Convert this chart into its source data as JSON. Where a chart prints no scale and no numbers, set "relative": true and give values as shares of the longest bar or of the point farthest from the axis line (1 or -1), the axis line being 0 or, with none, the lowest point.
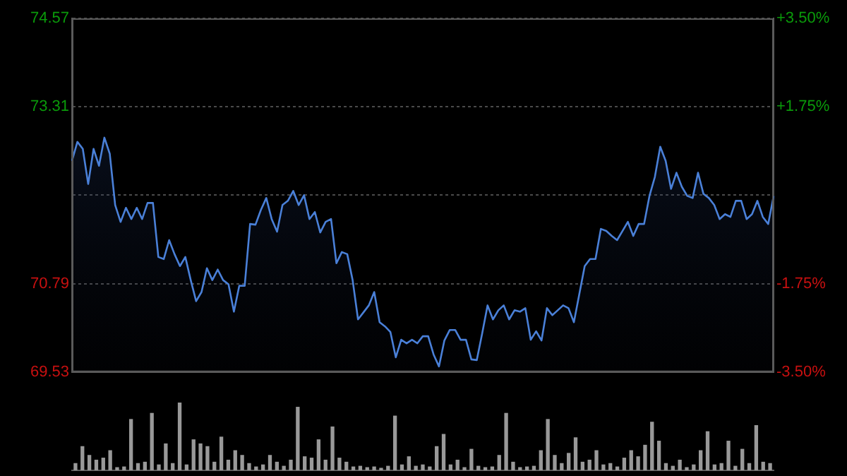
{
  "chart_data": [
    {
      "type": "area",
      "categories": [
        null,
        null,
        null,
        null,
        null,
        null,
        null,
        null,
        null,
        null,
        null,
        null,
        null,
        null,
        null,
        null,
        null,
        null,
        null,
        null,
        null,
        null,
        null,
        null,
        null,
        null,
        null,
        null,
        null,
        null,
        null,
        null,
        null,
        null,
        null,
        null,
        null,
        null,
        null,
        null,
        null,
        null,
        null,
        null,
        null,
        null,
        null,
        null,
        null,
        null,
        null,
        null,
        null,
        null,
        null,
        null,
        null,
        null,
        null,
        null,
        null,
        null,
        null,
        null,
        null,
        null,
        null,
        null,
        null,
        null,
        null,
        null,
        null,
        null,
        null,
        null,
        null,
        null,
        null,
        null,
        null,
        null,
        null,
        null,
        null,
        null,
        null,
        null,
        null,
        null,
        null,
        null,
        null,
        null,
        null,
        null,
        null,
        null,
        null,
        null,
        null,
        null,
        null,
        null,
        null,
        null,
        null,
        null,
        null,
        null,
        null,
        null,
        null,
        null,
        null,
        null,
        null,
        null,
        null,
        null,
        null,
        null,
        null,
        null,
        null,
        null,
        null,
        null,
        null,
        null,
        null
      ],
      "series": [
        {
          "color": "#4a80d8",
          "values": [
            72.54,
            72.81,
            72.71,
            72.21,
            72.71,
            72.47,
            72.87,
            72.64,
            71.91,
            71.67,
            71.87,
            71.71,
            71.87,
            71.71,
            71.94,
            71.94,
            71.17,
            71.14,
            71.41,
            71.21,
            71.04,
            71.17,
            70.84,
            70.54,
            70.67,
            71.01,
            70.84,
            70.99,
            70.84,
            70.78,
            70.39,
            70.76,
            70.76,
            71.64,
            71.63,
            71.84,
            72.01,
            71.71,
            71.53,
            71.91,
            71.97,
            72.11,
            71.91,
            72.05,
            71.71,
            71.81,
            71.52,
            71.67,
            71.71,
            71.08,
            71.24,
            71.21,
            70.84,
            70.28,
            70.38,
            70.48,
            70.67,
            70.24,
            70.18,
            70.1,
            69.74,
            69.99,
            69.94,
            69.99,
            69.94,
            70.04,
            70.04,
            69.78,
            69.61,
            69.98,
            70.13,
            70.13,
            69.99,
            69.99,
            69.71,
            69.7,
            70.08,
            70.48,
            70.28,
            70.41,
            70.48,
            70.28,
            70.41,
            70.39,
            70.44,
            69.99,
            70.11,
            69.98,
            70.44,
            70.34,
            70.41,
            70.48,
            70.44,
            70.24,
            70.64,
            71.04,
            71.14,
            71.14,
            71.57,
            71.54,
            71.47,
            71.41,
            71.54,
            71.67,
            71.47,
            71.64,
            71.64,
            72.04,
            72.31,
            72.74,
            72.54,
            72.14,
            72.37,
            72.17,
            72.04,
            72.01,
            72.37,
            72.07,
            72.01,
            71.91,
            71.71,
            71.78,
            71.74,
            71.97,
            71.97,
            71.71,
            71.78,
            71.97,
            71.74,
            71.64,
            72.04
          ]
        }
      ],
      "ylim": [
        69.53,
        74.57
      ],
      "yticks": [
        74.57,
        73.31,
        {
          "value": 72.05,
          "label": null
        },
        70.79,
        69.53
      ],
      "y2lim": [
        -3.5,
        3.5
      ],
      "y2ticks": [
        {
          "value": 3.5,
          "label": "+3.50%"
        },
        {
          "value": 1.75,
          "label": "+1.75%"
        },
        {
          "value": 0,
          "label": null
        },
        {
          "value": -1.75,
          "label": "-1.75%"
        },
        {
          "value": -3.5,
          "label": "-3.50%"
        }
      ],
      "grid": "y",
      "tick_labels": "y",
      "legend": false,
      "marker": "none",
      "line_style": "solid"
    },
    {
      "type": "bar",
      "relative": true,
      "categories": [
        null,
        null,
        null,
        null,
        null,
        null,
        null,
        null,
        null,
        null,
        null,
        null,
        null,
        null,
        null,
        null,
        null,
        null,
        null,
        null,
        null,
        null,
        null,
        null,
        null,
        null,
        null,
        null,
        null,
        null,
        null,
        null,
        null,
        null,
        null,
        null,
        null,
        null,
        null,
        null,
        null,
        null,
        null,
        null,
        null,
        null,
        null,
        null,
        null,
        null,
        null,
        null,
        null,
        null,
        null,
        null,
        null,
        null,
        null,
        null,
        null,
        null,
        null,
        null,
        null,
        null,
        null,
        null,
        null,
        null,
        null,
        null,
        null,
        null,
        null,
        null,
        null,
        null,
        null,
        null,
        null,
        null,
        null,
        null,
        null,
        null,
        null,
        null,
        null,
        null,
        null,
        null,
        null,
        null,
        null,
        null,
        null,
        null,
        null,
        null,
        null
      ],
      "series": [
        {
          "color": "#999999",
          "values": [
            0.1,
            0.35,
            0.22,
            0.15,
            0.18,
            0.29,
            0.04,
            0.05,
            0.75,
            0.1,
            0.12,
            0.84,
            0.08,
            0.39,
            0.1,
            1.0,
            0.08,
            0.45,
            0.39,
            0.35,
            0.12,
            0.49,
            0.15,
            0.29,
            0.22,
            0.1,
            0.05,
            0.08,
            0.22,
            0.12,
            0.06,
            0.15,
            0.93,
            0.2,
            0.18,
            0.45,
            0.15,
            0.64,
            0.18,
            0.12,
            0.05,
            0.06,
            0.04,
            0.05,
            0.03,
            0.06,
            0.8,
            0.08,
            0.2,
            0.06,
            0.08,
            0.05,
            0.35,
            0.53,
            0.08,
            0.15,
            0.04,
            0.31,
            0.06,
            0.04,
            0.05,
            0.22,
            0.84,
            0.12,
            0.04,
            0.05,
            0.06,
            0.29,
            0.75,
            0.22,
            0.1,
            0.25,
            0.48,
            0.12,
            0.15,
            0.29,
            0.08,
            0.1,
            0.05,
            0.18,
            0.29,
            0.2,
            0.37,
            0.71,
            0.43,
            0.1,
            0.06,
            0.15,
            0.04,
            0.08,
            0.29,
            0.57,
            0.08,
            0.1,
            0.43,
            0.06,
            0.31,
            0.1,
            0.66,
            0.12,
            0.1
          ]
        }
      ],
      "tick_labels": false,
      "legend": false
    }
  ]
}
